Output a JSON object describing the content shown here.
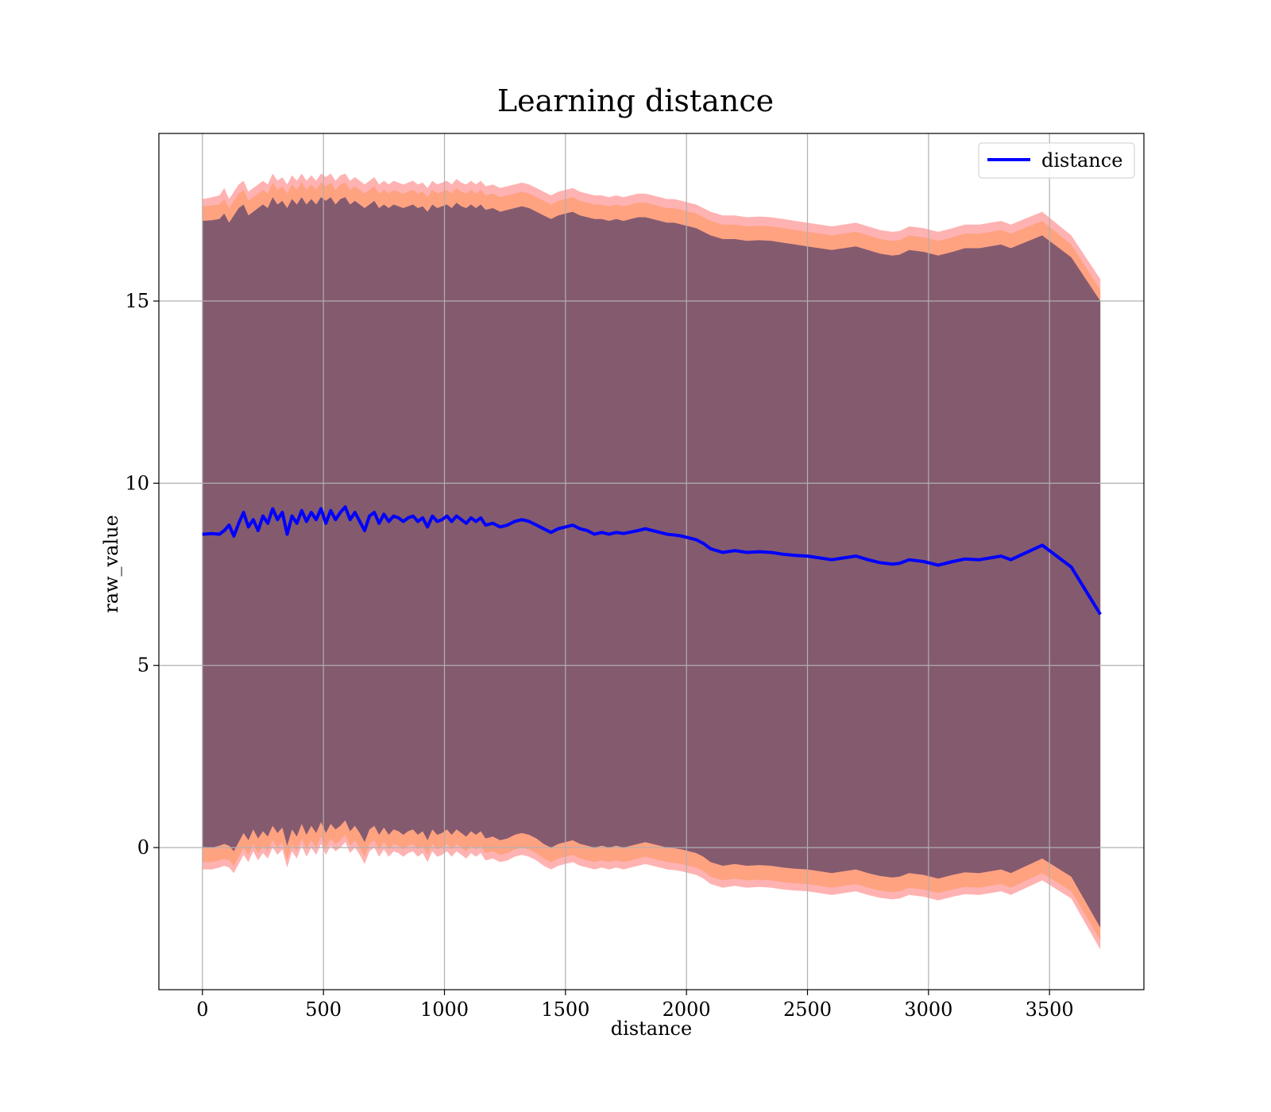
{
  "chart_data": {
    "type": "line",
    "title": "Learning distance",
    "xlabel": "distance",
    "ylabel": "raw_value",
    "xlim": [
      -180,
      3890
    ],
    "ylim": [
      -3.9,
      19.6
    ],
    "xticks": [
      0,
      500,
      1000,
      1500,
      2000,
      2500,
      3000,
      3500
    ],
    "yticks": [
      0,
      5,
      10,
      15
    ],
    "grid": true,
    "legend": {
      "position": "top-right",
      "entries": [
        "distance"
      ]
    },
    "colors": {
      "line": "#0000ff",
      "band_outer": "#ff0000",
      "band_inner": "#ff7f0e",
      "band_core": "#1f1f60",
      "grid": "#b0b0b0"
    },
    "series": [
      {
        "name": "distance",
        "x": [
          0,
          40,
          70,
          90,
          110,
          130,
          150,
          170,
          190,
          210,
          230,
          250,
          270,
          290,
          310,
          330,
          350,
          370,
          390,
          410,
          430,
          450,
          470,
          490,
          510,
          530,
          550,
          570,
          590,
          610,
          630,
          650,
          670,
          690,
          710,
          730,
          750,
          770,
          790,
          810,
          830,
          850,
          870,
          890,
          910,
          930,
          950,
          970,
          990,
          1010,
          1030,
          1050,
          1070,
          1090,
          1110,
          1130,
          1150,
          1170,
          1200,
          1230,
          1260,
          1290,
          1320,
          1350,
          1380,
          1410,
          1440,
          1470,
          1500,
          1530,
          1560,
          1590,
          1620,
          1650,
          1680,
          1710,
          1740,
          1770,
          1800,
          1830,
          1860,
          1890,
          1920,
          1950,
          1980,
          2010,
          2040,
          2070,
          2100,
          2150,
          2200,
          2250,
          2300,
          2350,
          2400,
          2450,
          2500,
          2550,
          2600,
          2650,
          2700,
          2750,
          2800,
          2850,
          2880,
          2920,
          2980,
          3040,
          3100,
          3150,
          3210,
          3300,
          3340,
          3470,
          3590,
          3710
        ],
        "y": [
          8.6,
          8.62,
          8.6,
          8.7,
          8.85,
          8.55,
          8.9,
          9.2,
          8.8,
          9.0,
          8.7,
          9.1,
          8.9,
          9.3,
          9.0,
          9.2,
          8.6,
          9.1,
          8.9,
          9.25,
          8.95,
          9.2,
          9.0,
          9.3,
          8.9,
          9.25,
          9.0,
          9.2,
          9.35,
          9.0,
          9.2,
          8.95,
          8.7,
          9.1,
          9.2,
          8.9,
          9.15,
          8.95,
          9.1,
          9.05,
          8.95,
          9.05,
          9.1,
          8.95,
          9.05,
          8.8,
          9.1,
          8.95,
          9.0,
          9.1,
          8.95,
          9.1,
          9.0,
          8.9,
          9.05,
          8.95,
          9.05,
          8.85,
          8.9,
          8.8,
          8.85,
          8.95,
          9.0,
          8.95,
          8.85,
          8.75,
          8.65,
          8.75,
          8.8,
          8.85,
          8.75,
          8.7,
          8.6,
          8.65,
          8.6,
          8.65,
          8.62,
          8.66,
          8.7,
          8.75,
          8.7,
          8.65,
          8.6,
          8.58,
          8.55,
          8.5,
          8.45,
          8.35,
          8.2,
          8.1,
          8.15,
          8.1,
          8.12,
          8.1,
          8.05,
          8.02,
          8.0,
          7.95,
          7.9,
          7.95,
          8.0,
          7.9,
          7.82,
          7.78,
          7.8,
          7.9,
          7.85,
          7.75,
          7.85,
          7.92,
          7.9,
          8.0,
          7.9,
          8.3,
          7.7,
          6.4
        ],
        "band_outer": {
          "upper": [
            17.8,
            17.85,
            17.9,
            18.1,
            17.8,
            18.0,
            18.2,
            18.3,
            18.0,
            18.1,
            18.2,
            18.3,
            18.2,
            18.5,
            18.3,
            18.4,
            18.2,
            18.45,
            18.3,
            18.5,
            18.3,
            18.45,
            18.3,
            18.5,
            18.4,
            18.5,
            18.3,
            18.45,
            18.5,
            18.3,
            18.4,
            18.3,
            18.2,
            18.3,
            18.4,
            18.2,
            18.3,
            18.2,
            18.3,
            18.25,
            18.2,
            18.25,
            18.3,
            18.2,
            18.25,
            18.1,
            18.3,
            18.2,
            18.25,
            18.3,
            18.2,
            18.35,
            18.25,
            18.2,
            18.3,
            18.2,
            18.3,
            18.15,
            18.2,
            18.1,
            18.15,
            18.2,
            18.25,
            18.2,
            18.1,
            18.0,
            17.9,
            18.0,
            18.05,
            18.1,
            18.0,
            17.95,
            17.9,
            17.9,
            17.85,
            17.9,
            17.85,
            17.9,
            17.95,
            17.95,
            17.9,
            17.85,
            17.8,
            17.8,
            17.75,
            17.7,
            17.65,
            17.55,
            17.45,
            17.35,
            17.35,
            17.3,
            17.32,
            17.3,
            17.25,
            17.2,
            17.15,
            17.1,
            17.05,
            17.1,
            17.15,
            17.05,
            16.95,
            16.9,
            16.92,
            17.05,
            17.0,
            16.9,
            17.0,
            17.1,
            17.1,
            17.2,
            17.1,
            17.45,
            16.8,
            15.6
          ],
          "lower": [
            -0.6,
            -0.6,
            -0.55,
            -0.5,
            -0.55,
            -0.7,
            -0.45,
            -0.2,
            -0.4,
            -0.1,
            -0.35,
            -0.15,
            -0.3,
            0.0,
            -0.2,
            -0.05,
            -0.55,
            -0.1,
            -0.3,
            0.05,
            -0.25,
            0.0,
            -0.2,
            0.1,
            -0.2,
            0.05,
            -0.1,
            0.0,
            0.15,
            -0.15,
            0.0,
            -0.2,
            -0.45,
            -0.1,
            0.0,
            -0.25,
            -0.05,
            -0.25,
            -0.1,
            -0.15,
            -0.25,
            -0.15,
            -0.1,
            -0.25,
            -0.15,
            -0.4,
            -0.1,
            -0.25,
            -0.2,
            -0.1,
            -0.25,
            -0.1,
            -0.2,
            -0.3,
            -0.15,
            -0.25,
            -0.15,
            -0.35,
            -0.3,
            -0.4,
            -0.35,
            -0.25,
            -0.2,
            -0.25,
            -0.35,
            -0.5,
            -0.6,
            -0.5,
            -0.45,
            -0.4,
            -0.5,
            -0.55,
            -0.6,
            -0.55,
            -0.6,
            -0.55,
            -0.6,
            -0.55,
            -0.5,
            -0.45,
            -0.5,
            -0.55,
            -0.6,
            -0.62,
            -0.65,
            -0.7,
            -0.75,
            -0.85,
            -1.0,
            -1.1,
            -1.05,
            -1.1,
            -1.08,
            -1.1,
            -1.15,
            -1.18,
            -1.2,
            -1.25,
            -1.3,
            -1.25,
            -1.2,
            -1.3,
            -1.38,
            -1.42,
            -1.4,
            -1.3,
            -1.35,
            -1.45,
            -1.35,
            -1.28,
            -1.3,
            -1.2,
            -1.3,
            -0.9,
            -1.4,
            -2.8
          ]
        },
        "band_inner": {
          "upper": [
            17.6,
            17.62,
            17.65,
            17.8,
            17.55,
            17.75,
            17.95,
            18.05,
            17.75,
            17.85,
            17.95,
            18.05,
            17.95,
            18.25,
            18.05,
            18.15,
            17.95,
            18.2,
            18.05,
            18.25,
            18.05,
            18.2,
            18.05,
            18.25,
            18.15,
            18.25,
            18.05,
            18.2,
            18.25,
            18.05,
            18.15,
            18.05,
            17.95,
            18.05,
            18.15,
            17.95,
            18.05,
            17.95,
            18.05,
            18.0,
            17.95,
            18.0,
            18.05,
            17.95,
            18.0,
            17.85,
            18.05,
            17.95,
            18.0,
            18.05,
            17.95,
            18.1,
            18.0,
            17.95,
            18.05,
            17.95,
            18.05,
            17.9,
            17.95,
            17.85,
            17.9,
            17.95,
            18.0,
            17.95,
            17.85,
            17.75,
            17.65,
            17.75,
            17.8,
            17.85,
            17.75,
            17.7,
            17.65,
            17.65,
            17.6,
            17.65,
            17.6,
            17.65,
            17.7,
            17.7,
            17.65,
            17.6,
            17.55,
            17.55,
            17.5,
            17.45,
            17.4,
            17.3,
            17.2,
            17.1,
            17.1,
            17.05,
            17.07,
            17.05,
            17.0,
            16.95,
            16.9,
            16.85,
            16.8,
            16.85,
            16.9,
            16.8,
            16.7,
            16.65,
            16.67,
            16.8,
            16.75,
            16.65,
            16.75,
            16.85,
            16.85,
            16.95,
            16.85,
            17.2,
            16.55,
            15.3
          ],
          "lower": [
            -0.4,
            -0.4,
            -0.35,
            -0.3,
            -0.35,
            -0.5,
            -0.25,
            0.0,
            -0.2,
            0.1,
            -0.15,
            0.05,
            -0.1,
            0.2,
            0.0,
            0.15,
            -0.35,
            0.1,
            -0.1,
            0.25,
            -0.05,
            0.2,
            0.0,
            0.3,
            0.0,
            0.25,
            0.1,
            0.2,
            0.35,
            0.05,
            0.2,
            0.0,
            -0.25,
            0.1,
            0.2,
            -0.05,
            0.15,
            -0.05,
            0.1,
            0.05,
            -0.05,
            0.05,
            0.1,
            -0.05,
            0.05,
            -0.2,
            0.1,
            -0.05,
            0.0,
            0.1,
            -0.05,
            0.1,
            0.0,
            -0.1,
            0.05,
            -0.05,
            0.05,
            -0.15,
            -0.1,
            -0.2,
            -0.15,
            -0.05,
            0.0,
            -0.05,
            -0.15,
            -0.3,
            -0.4,
            -0.3,
            -0.25,
            -0.2,
            -0.3,
            -0.35,
            -0.4,
            -0.35,
            -0.4,
            -0.35,
            -0.4,
            -0.35,
            -0.3,
            -0.25,
            -0.3,
            -0.35,
            -0.4,
            -0.42,
            -0.45,
            -0.5,
            -0.55,
            -0.65,
            -0.8,
            -0.9,
            -0.85,
            -0.9,
            -0.88,
            -0.9,
            -0.95,
            -0.98,
            -1.0,
            -1.05,
            -1.1,
            -1.05,
            -1.0,
            -1.1,
            -1.18,
            -1.22,
            -1.2,
            -1.1,
            -1.15,
            -1.25,
            -1.15,
            -1.08,
            -1.1,
            -1.0,
            -1.1,
            -0.7,
            -1.2,
            -2.55
          ]
        },
        "band_core": {
          "upper": [
            17.2,
            17.22,
            17.25,
            17.4,
            17.15,
            17.35,
            17.55,
            17.65,
            17.35,
            17.45,
            17.55,
            17.65,
            17.55,
            17.85,
            17.65,
            17.75,
            17.55,
            17.8,
            17.65,
            17.85,
            17.65,
            17.8,
            17.65,
            17.85,
            17.75,
            17.85,
            17.65,
            17.8,
            17.85,
            17.65,
            17.75,
            17.65,
            17.55,
            17.65,
            17.75,
            17.55,
            17.65,
            17.55,
            17.65,
            17.6,
            17.55,
            17.6,
            17.65,
            17.55,
            17.6,
            17.45,
            17.65,
            17.55,
            17.6,
            17.65,
            17.55,
            17.7,
            17.6,
            17.55,
            17.65,
            17.55,
            17.65,
            17.5,
            17.55,
            17.45,
            17.5,
            17.55,
            17.6,
            17.55,
            17.45,
            17.35,
            17.25,
            17.35,
            17.4,
            17.45,
            17.35,
            17.3,
            17.25,
            17.25,
            17.2,
            17.25,
            17.2,
            17.25,
            17.3,
            17.3,
            17.25,
            17.2,
            17.15,
            17.15,
            17.1,
            17.05,
            17.0,
            16.9,
            16.8,
            16.7,
            16.7,
            16.65,
            16.67,
            16.65,
            16.6,
            16.55,
            16.5,
            16.45,
            16.4,
            16.45,
            16.5,
            16.4,
            16.3,
            16.25,
            16.27,
            16.4,
            16.35,
            16.25,
            16.35,
            16.45,
            16.45,
            16.55,
            16.45,
            16.8,
            16.2,
            15.0
          ],
          "lower": [
            0.0,
            0.0,
            0.05,
            0.1,
            0.05,
            -0.1,
            0.15,
            0.4,
            0.2,
            0.5,
            0.25,
            0.45,
            0.3,
            0.6,
            0.4,
            0.55,
            0.05,
            0.5,
            0.3,
            0.65,
            0.35,
            0.6,
            0.4,
            0.7,
            0.4,
            0.65,
            0.5,
            0.6,
            0.75,
            0.45,
            0.6,
            0.4,
            0.15,
            0.5,
            0.6,
            0.35,
            0.55,
            0.35,
            0.5,
            0.45,
            0.35,
            0.45,
            0.5,
            0.35,
            0.45,
            0.2,
            0.5,
            0.35,
            0.4,
            0.5,
            0.35,
            0.5,
            0.4,
            0.3,
            0.45,
            0.35,
            0.45,
            0.25,
            0.3,
            0.2,
            0.25,
            0.35,
            0.4,
            0.35,
            0.25,
            0.1,
            0.0,
            0.1,
            0.15,
            0.2,
            0.1,
            0.05,
            0.0,
            0.05,
            0.0,
            0.05,
            0.0,
            0.05,
            0.1,
            0.15,
            0.1,
            0.05,
            0.0,
            -0.02,
            -0.05,
            -0.1,
            -0.15,
            -0.25,
            -0.4,
            -0.5,
            -0.45,
            -0.5,
            -0.48,
            -0.5,
            -0.55,
            -0.58,
            -0.6,
            -0.65,
            -0.7,
            -0.65,
            -0.6,
            -0.7,
            -0.78,
            -0.82,
            -0.8,
            -0.7,
            -0.75,
            -0.85,
            -0.75,
            -0.68,
            -0.7,
            -0.6,
            -0.7,
            -0.3,
            -0.8,
            -2.2
          ]
        }
      }
    ]
  }
}
